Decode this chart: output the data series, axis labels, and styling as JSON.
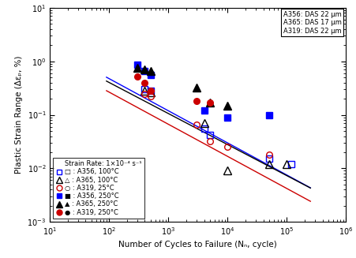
{
  "xlabel": "Number of Cycles to Failure (Nₙ, cycle)",
  "ylabel": "Plastic Strain Range (Δεₚ, %)",
  "xlim": [
    10,
    1000000
  ],
  "ylim": [
    0.001,
    10
  ],
  "info_box": "A356: DAS 22 μm\nA365: DAS 17 μm\nA319: DAS 22 μm",
  "fit_lines": [
    {
      "color": "#0000ff",
      "C": 7.5,
      "m": -0.6
    },
    {
      "color": "#000000",
      "C": 5.8,
      "m": -0.58
    },
    {
      "color": "#cc0000",
      "C": 4.2,
      "m": -0.6
    }
  ],
  "series": [
    {
      "marker": "s",
      "filled": false,
      "color": "#0000ff",
      "x": [
        400,
        500,
        4000,
        5000,
        50000,
        120000
      ],
      "y": [
        0.3,
        0.28,
        0.055,
        0.042,
        0.015,
        0.012
      ]
    },
    {
      "marker": "^",
      "filled": false,
      "color": "#000000",
      "x": [
        400,
        500,
        4000,
        10000,
        50000,
        100000
      ],
      "y": [
        0.28,
        0.26,
        0.07,
        0.009,
        0.012,
        0.012
      ]
    },
    {
      "marker": "o",
      "filled": false,
      "color": "#cc0000",
      "x": [
        400,
        500,
        3000,
        5000,
        10000,
        50000
      ],
      "y": [
        0.25,
        0.22,
        0.065,
        0.032,
        0.025,
        0.018
      ]
    },
    {
      "marker": "s",
      "filled": true,
      "color": "#0000ff",
      "x": [
        300,
        400,
        500,
        4000,
        10000,
        50000
      ],
      "y": [
        0.85,
        0.65,
        0.55,
        0.12,
        0.09,
        0.1
      ]
    },
    {
      "marker": "^",
      "filled": true,
      "color": "#000000",
      "x": [
        300,
        400,
        500,
        3000,
        5000,
        10000
      ],
      "y": [
        0.75,
        0.7,
        0.65,
        0.32,
        0.17,
        0.15
      ]
    },
    {
      "marker": "o",
      "filled": true,
      "color": "#cc0000",
      "x": [
        300,
        400,
        500,
        3000,
        5000
      ],
      "y": [
        0.52,
        0.4,
        0.28,
        0.18,
        0.17
      ]
    }
  ],
  "legend_entries": [
    {
      "marker": "",
      "filled": false,
      "color": "#000000",
      "label": "Strain Rate: 1×10⁻⁴ s⁻¹"
    },
    {
      "marker": "s",
      "filled": false,
      "color": "#0000ff",
      "label": "□ : A356, 100°C"
    },
    {
      "marker": "^",
      "filled": false,
      "color": "#000000",
      "label": "△ : A365, 100°C"
    },
    {
      "marker": "o",
      "filled": false,
      "color": "#cc0000",
      "label": "○ : A319, 25°C"
    },
    {
      "marker": "s",
      "filled": true,
      "color": "#0000ff",
      "label": "■ : A356, 250°C"
    },
    {
      "marker": "^",
      "filled": true,
      "color": "#000000",
      "label": "▲ : A365, 250°C"
    },
    {
      "marker": "o",
      "filled": true,
      "color": "#cc0000",
      "label": "● : A319, 250°C"
    }
  ]
}
